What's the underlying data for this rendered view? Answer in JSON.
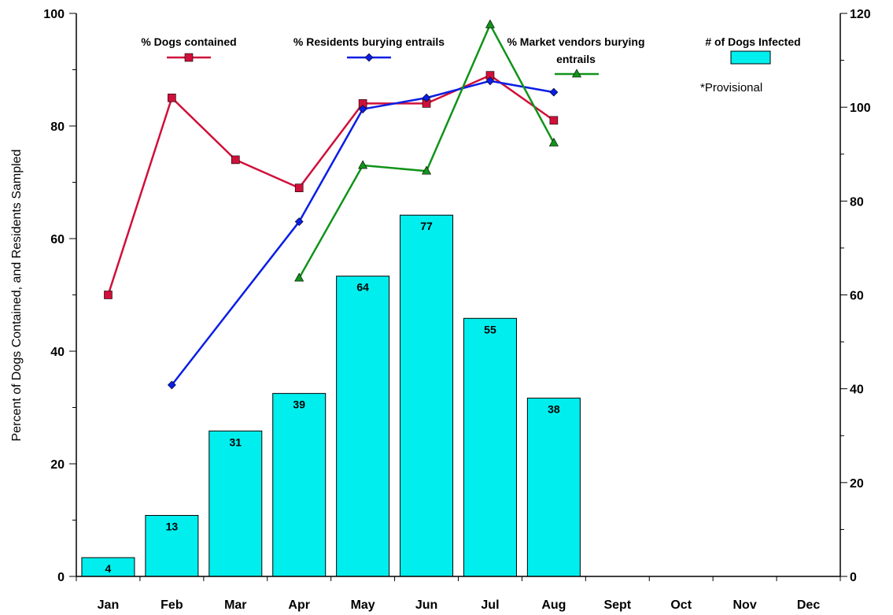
{
  "chart_data": {
    "type": "bar",
    "categories": [
      "Jan",
      "Feb",
      "Mar",
      "Apr",
      "May",
      "Jun",
      "Jul",
      "Aug",
      "Sept",
      "Oct",
      "Nov",
      "Dec"
    ],
    "ylabel": "Percent of  Dogs Contained, and Residents Sampled",
    "ylim": [
      0,
      100
    ],
    "y_ticks": [
      "0",
      "20",
      "40",
      "60",
      "80",
      "100"
    ],
    "y2lim": [
      0,
      120
    ],
    "y2_ticks": [
      "0",
      "20",
      "40",
      "60",
      "80",
      "100",
      "120"
    ],
    "grid": false,
    "annotation": "*Provisional",
    "bars": {
      "name": "# of Dogs Infected",
      "axis": "right",
      "color": "#00EEEE",
      "values": [
        4,
        13,
        31,
        39,
        64,
        77,
        55,
        38,
        null,
        null,
        null,
        null
      ]
    },
    "series": [
      {
        "name": "% Dogs contained",
        "axis": "left",
        "color": "#D0103A",
        "marker": "square",
        "values": [
          50,
          85,
          74,
          69,
          84,
          84,
          89,
          81,
          null,
          null,
          null,
          null
        ]
      },
      {
        "name": "% Residents burying entrails",
        "axis": "left",
        "color": "#0A1EE6",
        "marker": "diamond",
        "values": [
          null,
          34,
          null,
          63,
          83,
          85,
          88,
          86,
          null,
          null,
          null,
          null
        ]
      },
      {
        "name_lines": [
          "% Market vendors burying",
          "entrails"
        ],
        "axis": "left",
        "color": "#11931A",
        "marker": "triangle",
        "values": [
          null,
          null,
          null,
          53,
          73,
          72,
          98,
          77,
          null,
          null,
          null,
          null
        ]
      }
    ]
  }
}
